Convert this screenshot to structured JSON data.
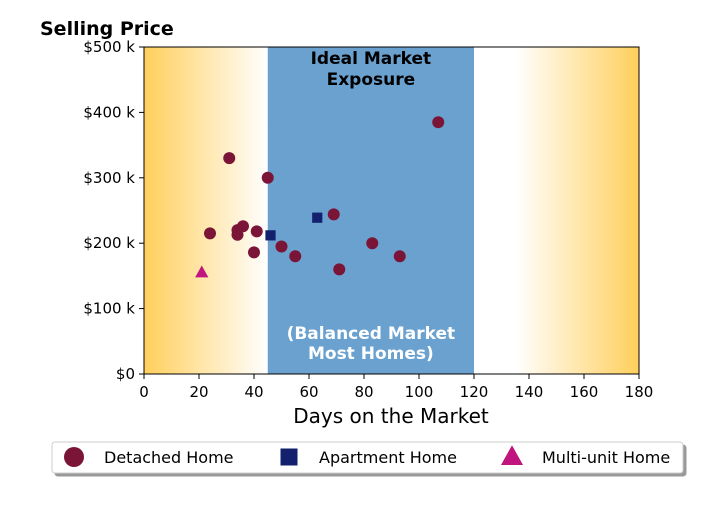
{
  "chart_data": {
    "type": "scatter",
    "title": "Selling Price",
    "xlabel": "Days on the Market",
    "ylabel": "",
    "xlim": [
      0,
      180
    ],
    "ylim": [
      0,
      500000
    ],
    "x_ticks": [
      {
        "value": 0,
        "label": "0"
      },
      {
        "value": 20,
        "label": "20"
      },
      {
        "value": 40,
        "label": "40"
      },
      {
        "value": 60,
        "label": "60"
      },
      {
        "value": 80,
        "label": "80"
      },
      {
        "value": 100,
        "label": "100"
      },
      {
        "value": 120,
        "label": "120"
      },
      {
        "value": 140,
        "label": "140"
      },
      {
        "value": 160,
        "label": "160"
      },
      {
        "value": 180,
        "label": "180"
      }
    ],
    "y_ticks": [
      {
        "value": 0,
        "label": "$0"
      },
      {
        "value": 100000,
        "label": "$100 k"
      },
      {
        "value": 200000,
        "label": "$200 k"
      },
      {
        "value": 300000,
        "label": "$300 k"
      },
      {
        "value": 400000,
        "label": "$400 k"
      },
      {
        "value": 500000,
        "label": "$500 k"
      }
    ],
    "grid": false,
    "legend_placement": "bottom",
    "band": {
      "x_range": [
        45,
        120
      ],
      "color": "#6aa1ce",
      "label_top": [
        "Ideal Market",
        "Exposure"
      ],
      "label_bottom": [
        "(Balanced Market",
        "Most Homes)"
      ]
    },
    "background_gradient": {
      "edge_color": "#ffcf5c",
      "center_color": "#ffffff"
    },
    "series": [
      {
        "name": "Detached Home",
        "marker": "circle",
        "color": "#7b1537",
        "points": [
          {
            "x": 24,
            "y": 215000
          },
          {
            "x": 31,
            "y": 330000
          },
          {
            "x": 34,
            "y": 220000
          },
          {
            "x": 34,
            "y": 213000
          },
          {
            "x": 36,
            "y": 226000
          },
          {
            "x": 40,
            "y": 186000
          },
          {
            "x": 41,
            "y": 218000
          },
          {
            "x": 45,
            "y": 300000
          },
          {
            "x": 50,
            "y": 195000
          },
          {
            "x": 55,
            "y": 180000
          },
          {
            "x": 69,
            "y": 244000
          },
          {
            "x": 71,
            "y": 160000
          },
          {
            "x": 83,
            "y": 200000
          },
          {
            "x": 93,
            "y": 180000
          },
          {
            "x": 107,
            "y": 385000
          }
        ]
      },
      {
        "name": "Apartment Home",
        "marker": "square",
        "color": "#13206e",
        "points": [
          {
            "x": 46,
            "y": 212000
          },
          {
            "x": 63,
            "y": 239000
          }
        ]
      },
      {
        "name": "Multi-unit Home",
        "marker": "triangle",
        "color": "#c0147e",
        "points": [
          {
            "x": 21,
            "y": 155000
          }
        ]
      }
    ]
  }
}
